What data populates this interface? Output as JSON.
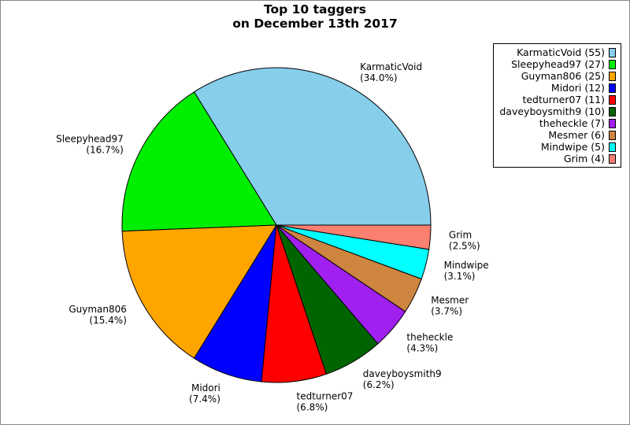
{
  "colors": {
    "background": "#ffffff",
    "outline": "#000000"
  },
  "chart_data": {
    "type": "pie",
    "title": "Top 10 taggers",
    "subtitle": "on December 13th 2017",
    "legend_position": "top-right",
    "slices": [
      {
        "name": "KarmaticVoid",
        "value": 55,
        "percent_label": "(34.0%)",
        "legend_label": "KarmaticVoid (55)",
        "color": "#87ceeb"
      },
      {
        "name": "Sleepyhead97",
        "value": 27,
        "percent_label": "(16.7%)",
        "legend_label": "Sleepyhead97 (27)",
        "color": "#00ee00"
      },
      {
        "name": "Guyman806",
        "value": 25,
        "percent_label": "(15.4%)",
        "legend_label": "Guyman806 (25)",
        "color": "#ffa500"
      },
      {
        "name": "Midori",
        "value": 12,
        "percent_label": "(7.4%)",
        "legend_label": "Midori (12)",
        "color": "#0000ff"
      },
      {
        "name": "tedturner07",
        "value": 11,
        "percent_label": "(6.8%)",
        "legend_label": "tedturner07 (11)",
        "color": "#ff0000"
      },
      {
        "name": "daveyboysmith9",
        "value": 10,
        "percent_label": "(6.2%)",
        "legend_label": "daveyboysmith9 (10)",
        "color": "#006400"
      },
      {
        "name": "theheckle",
        "value": 7,
        "percent_label": "(4.3%)",
        "legend_label": "theheckle (7)",
        "color": "#a020f0"
      },
      {
        "name": "Mesmer",
        "value": 6,
        "percent_label": "(3.7%)",
        "legend_label": "Mesmer (6)",
        "color": "#cd853f"
      },
      {
        "name": "Mindwipe",
        "value": 5,
        "percent_label": "(3.1%)",
        "legend_label": "Mindwipe (5)",
        "color": "#00ffff"
      },
      {
        "name": "Grim",
        "value": 4,
        "percent_label": "(2.5%)",
        "legend_label": "Grim (4)",
        "color": "#fa8072"
      }
    ]
  }
}
